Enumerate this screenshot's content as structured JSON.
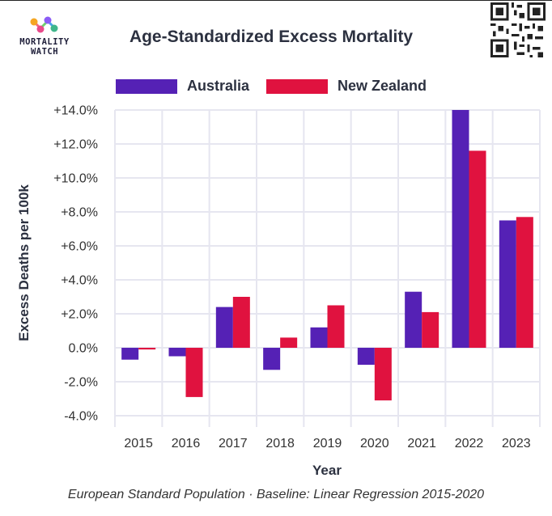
{
  "logo": {
    "text_line1": "MORTALITY",
    "text_line2": "WATCH"
  },
  "footnote": "European Standard Population · Baseline: Linear Regression 2015-2020",
  "colors": {
    "australia": "#5521b5",
    "new_zealand": "#e0123f",
    "grid": "#e6e6f0"
  },
  "chart_data": {
    "type": "bar",
    "title": "Age-Standardized Excess Mortality",
    "xlabel": "Year",
    "ylabel": "Excess Deaths per 100k",
    "categories": [
      "2015",
      "2016",
      "2017",
      "2018",
      "2019",
      "2020",
      "2021",
      "2022",
      "2023"
    ],
    "series": [
      {
        "name": "Australia",
        "color": "#5521b5",
        "values": [
          -0.7,
          -0.5,
          2.4,
          -1.3,
          1.2,
          -1.0,
          3.3,
          14.0,
          7.5
        ]
      },
      {
        "name": "New Zealand",
        "color": "#e0123f",
        "values": [
          -0.1,
          -2.9,
          3.0,
          0.6,
          2.5,
          -3.1,
          2.1,
          11.6,
          7.7
        ]
      }
    ],
    "yticks": [
      "+14.0%",
      "+12.0%",
      "+10.0%",
      "+8.0%",
      "+6.0%",
      "+4.0%",
      "+2.0%",
      "0.0%",
      "-2.0%",
      "-4.0%"
    ],
    "ylim": [
      -4,
      14
    ],
    "grid": true,
    "legend_position": "top"
  }
}
